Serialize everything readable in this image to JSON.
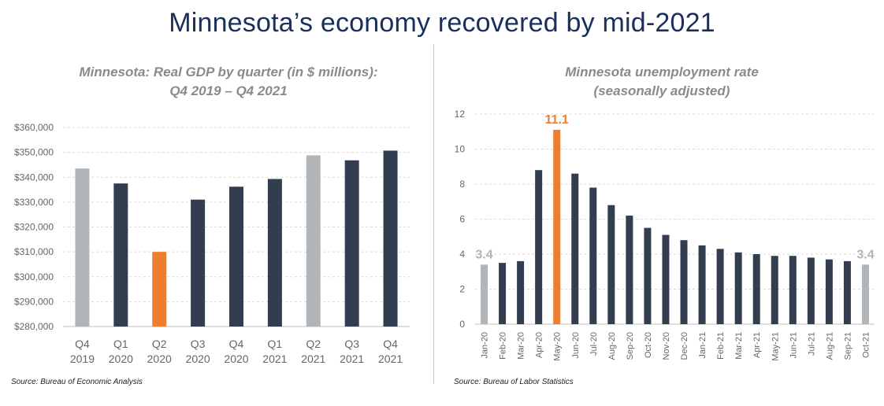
{
  "title": "Minnesota’s economy recovered by mid-2021",
  "colors": {
    "baseline": "#b1b5b8",
    "normal": "#323e4f",
    "highlight": "#ed7d31",
    "title": "#1a2f5c"
  },
  "chart_data": [
    {
      "type": "bar",
      "title_lines": [
        "Minnesota: Real GDP by quarter (in $ millions):",
        "Q4 2019 – Q4 2021"
      ],
      "categories": [
        [
          "Q4",
          "2019"
        ],
        [
          "Q1",
          "2020"
        ],
        [
          "Q2",
          "2020"
        ],
        [
          "Q3",
          "2020"
        ],
        [
          "Q4",
          "2020"
        ],
        [
          "Q1",
          "2021"
        ],
        [
          "Q2",
          "2021"
        ],
        [
          "Q3",
          "2021"
        ],
        [
          "Q4",
          "2021"
        ]
      ],
      "values": [
        343500,
        337500,
        310000,
        331000,
        336200,
        339300,
        348800,
        346800,
        350700
      ],
      "bar_colors": [
        "baseline",
        "normal",
        "highlight",
        "normal",
        "normal",
        "normal",
        "baseline",
        "normal",
        "normal"
      ],
      "ylim": [
        280000,
        360000
      ],
      "yticks": [
        280000,
        290000,
        300000,
        310000,
        320000,
        330000,
        340000,
        350000,
        360000
      ],
      "ytick_labels": [
        "$280,000",
        "$290,000",
        "$300,000",
        "$310,000",
        "$320,000",
        "$330,000",
        "$340,000",
        "$350,000",
        "$360,000"
      ],
      "source": "Source: Bureau of Economic Analysis"
    },
    {
      "type": "bar",
      "title_lines": [
        "Minnesota unemployment rate",
        "(seasonally adjusted)"
      ],
      "categories": [
        "Jan-20",
        "Feb-20",
        "Mar-20",
        "Apr-20",
        "May-20",
        "Jun-20",
        "Jul-20",
        "Aug-20",
        "Sep-20",
        "Oct-20",
        "Nov-20",
        "Dec-20",
        "Jan-21",
        "Feb-21",
        "Mar-21",
        "Apr-21",
        "May-21",
        "Jun-21",
        "Jul-21",
        "Aug-21",
        "Sep-21",
        "Oct-21"
      ],
      "values": [
        3.4,
        3.5,
        3.6,
        8.8,
        11.1,
        8.6,
        7.8,
        6.8,
        6.2,
        5.5,
        5.1,
        4.8,
        4.5,
        4.3,
        4.1,
        4.0,
        3.9,
        3.9,
        3.8,
        3.7,
        3.6,
        3.4
      ],
      "bar_colors": [
        "baseline",
        "normal",
        "normal",
        "normal",
        "highlight",
        "normal",
        "normal",
        "normal",
        "normal",
        "normal",
        "normal",
        "normal",
        "normal",
        "normal",
        "normal",
        "normal",
        "normal",
        "normal",
        "normal",
        "normal",
        "normal",
        "baseline"
      ],
      "data_labels": [
        {
          "index": 0,
          "text": "3.4",
          "color": "baseline"
        },
        {
          "index": 4,
          "text": "11.1",
          "color": "highlight"
        },
        {
          "index": 21,
          "text": "3.4",
          "color": "baseline"
        }
      ],
      "ylim": [
        0,
        12
      ],
      "yticks": [
        0,
        2,
        4,
        6,
        8,
        10,
        12
      ],
      "ytick_labels": [
        "0",
        "2",
        "4",
        "6",
        "8",
        "10",
        "12"
      ],
      "source": "Source: Bureau of Labor Statistics"
    }
  ]
}
